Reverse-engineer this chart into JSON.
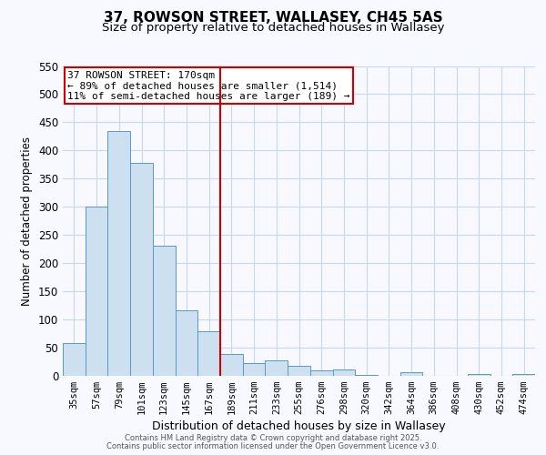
{
  "title": "37, ROWSON STREET, WALLASEY, CH45 5AS",
  "subtitle": "Size of property relative to detached houses in Wallasey",
  "xlabel": "Distribution of detached houses by size in Wallasey",
  "ylabel": "Number of detached properties",
  "bar_labels": [
    "35sqm",
    "57sqm",
    "79sqm",
    "101sqm",
    "123sqm",
    "145sqm",
    "167sqm",
    "189sqm",
    "211sqm",
    "233sqm",
    "255sqm",
    "276sqm",
    "298sqm",
    "320sqm",
    "342sqm",
    "364sqm",
    "386sqm",
    "408sqm",
    "430sqm",
    "452sqm",
    "474sqm"
  ],
  "bar_values": [
    57,
    300,
    435,
    378,
    230,
    115,
    78,
    38,
    22,
    27,
    17,
    9,
    10,
    1,
    0,
    5,
    0,
    0,
    2,
    0,
    2
  ],
  "bar_color": "#cce0f0",
  "bar_edge_color": "#5599cc",
  "vline_x_index": 6,
  "vline_color": "#cc0000",
  "annotation_title": "37 ROWSON STREET: 170sqm",
  "annotation_line1": "← 89% of detached houses are smaller (1,514)",
  "annotation_line2": "11% of semi-detached houses are larger (189) →",
  "annotation_box_color": "#cc0000",
  "ylim": [
    0,
    550
  ],
  "yticks": [
    0,
    50,
    100,
    150,
    200,
    250,
    300,
    350,
    400,
    450,
    500,
    550
  ],
  "footer1": "Contains HM Land Registry data © Crown copyright and database right 2025.",
  "footer2": "Contains public sector information licensed under the Open Government Licence v3.0.",
  "bg_color": "#f8f8ff",
  "grid_color": "#c8d8e8",
  "title_fontsize": 11,
  "subtitle_fontsize": 9.5,
  "ylabel_fontsize": 8.5,
  "xlabel_fontsize": 9,
  "tick_fontsize": 7.5,
  "annotation_fontsize": 8
}
